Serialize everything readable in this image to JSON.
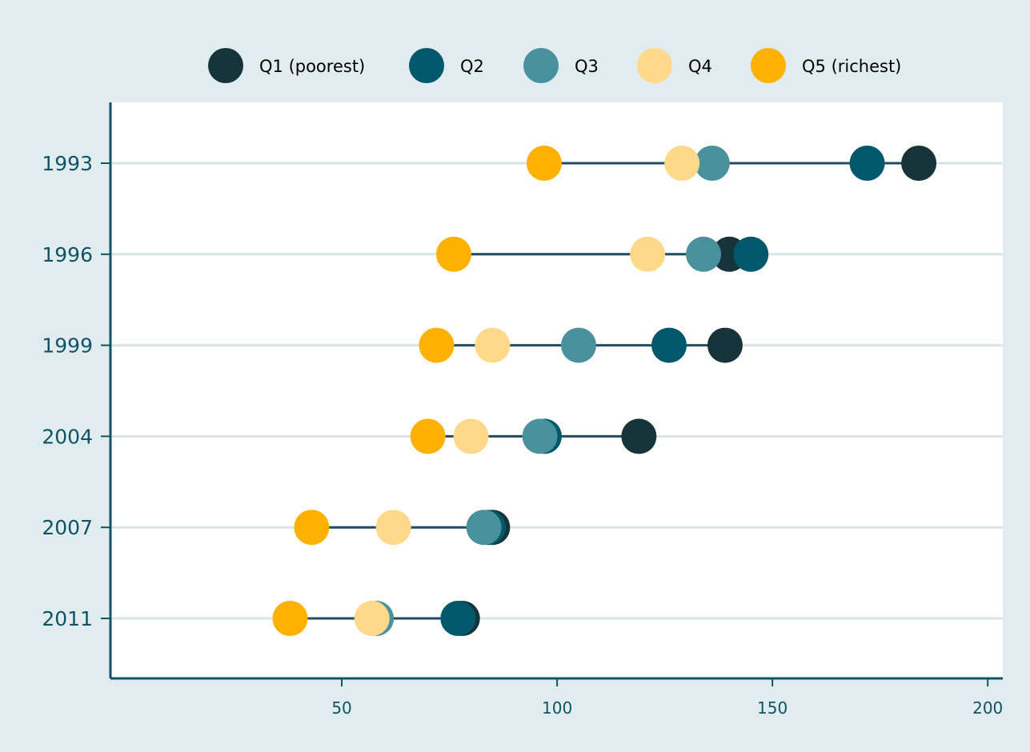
{
  "chart_data": {
    "type": "scatter",
    "subtype": "dot-range",
    "title": "",
    "xlabel": "",
    "ylabel": "",
    "xlim": [
      0,
      200
    ],
    "xticks": [
      50,
      100,
      150,
      200
    ],
    "categories": [
      "1993",
      "1996",
      "1999",
      "2004",
      "2007",
      "2011"
    ],
    "legend_position": "top",
    "grid": "horizontal",
    "series": [
      {
        "name": "Q1 (poorest)",
        "color": "#17343a",
        "values": [
          184,
          140,
          139,
          119,
          85,
          78
        ]
      },
      {
        "name": "Q2",
        "color": "#00586a",
        "values": [
          172,
          145,
          126,
          97,
          84,
          77
        ]
      },
      {
        "name": "Q3",
        "color": "#4a919e",
        "values": [
          136,
          134,
          105,
          96,
          83,
          58
        ]
      },
      {
        "name": "Q4",
        "color": "#fed98a",
        "values": [
          129,
          121,
          85,
          80,
          62,
          57
        ]
      },
      {
        "name": "Q5 (richest)",
        "color": "#ffb100",
        "values": [
          97,
          76,
          72,
          70,
          43,
          38
        ]
      }
    ]
  },
  "colors": {
    "page_background": "#e1ecee",
    "plot_background": "#ffffff",
    "axis": "#0f5466",
    "grid": "#d8e4e8",
    "range_line": "#214d63",
    "tick_label": "#0f5466"
  }
}
